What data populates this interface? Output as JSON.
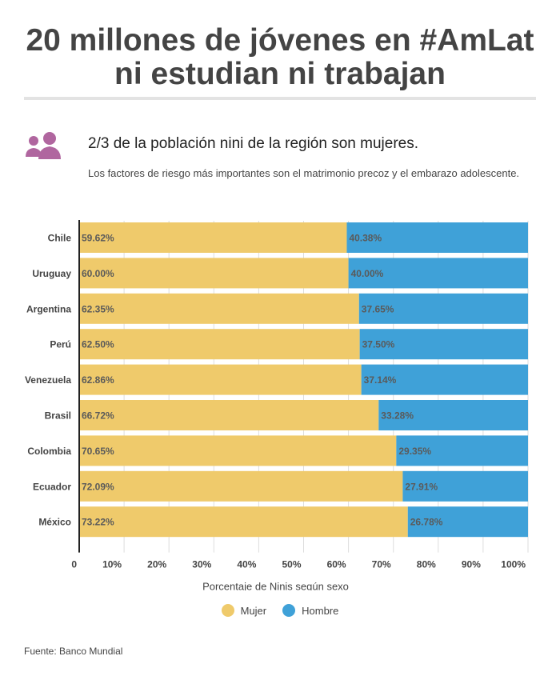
{
  "header": {
    "title_line1": "20 millones de jóvenes en #AmLat",
    "title_line2": "ni estudian ni trabajan"
  },
  "intro": {
    "icon": "women-users-icon",
    "subtitle": "2/3 de la población nini de la región son mujeres.",
    "description": "Los factores de riesgo más importantes son el matrimonio precoz y el embarazo adolescente."
  },
  "chart_data": {
    "type": "bar",
    "orientation": "horizontal",
    "stacked": true,
    "categories": [
      "Chile",
      "Uruguay",
      "Argentina",
      "Perú",
      "Venezuela",
      "Brasil",
      "Colombia",
      "Ecuador",
      "México"
    ],
    "series": [
      {
        "name": "Mujer",
        "color": "#efca6b",
        "values": [
          59.62,
          60.0,
          62.35,
          62.5,
          62.86,
          66.72,
          70.65,
          72.09,
          73.22
        ],
        "labels": [
          "59.62%",
          "60.00%",
          "62.35%",
          "62.50%",
          "62.86%",
          "66.72%",
          "70.65%",
          "72.09%",
          "73.22%"
        ]
      },
      {
        "name": "Hombre",
        "color": "#3fa1d8",
        "values": [
          40.38,
          40.0,
          37.65,
          37.5,
          37.14,
          33.28,
          29.35,
          27.91,
          26.78
        ],
        "labels": [
          "40.38%",
          "40.00%",
          "37.65%",
          "37.50%",
          "37.14%",
          "33.28%",
          "29.35%",
          "27.91%",
          "26.78%"
        ]
      }
    ],
    "xlim": [
      0,
      100
    ],
    "xticks": [
      0,
      10,
      20,
      30,
      40,
      50,
      60,
      70,
      80,
      90,
      100
    ],
    "xtick_labels": [
      "0",
      "10%",
      "20%",
      "30%",
      "40%",
      "50%",
      "60%",
      "70%",
      "80%",
      "90%",
      "100%"
    ],
    "xlabel": "Porcentaje de Ninis según sexo",
    "legend_position": "bottom"
  },
  "footer": {
    "source": "Fuente: Banco Mundial"
  }
}
